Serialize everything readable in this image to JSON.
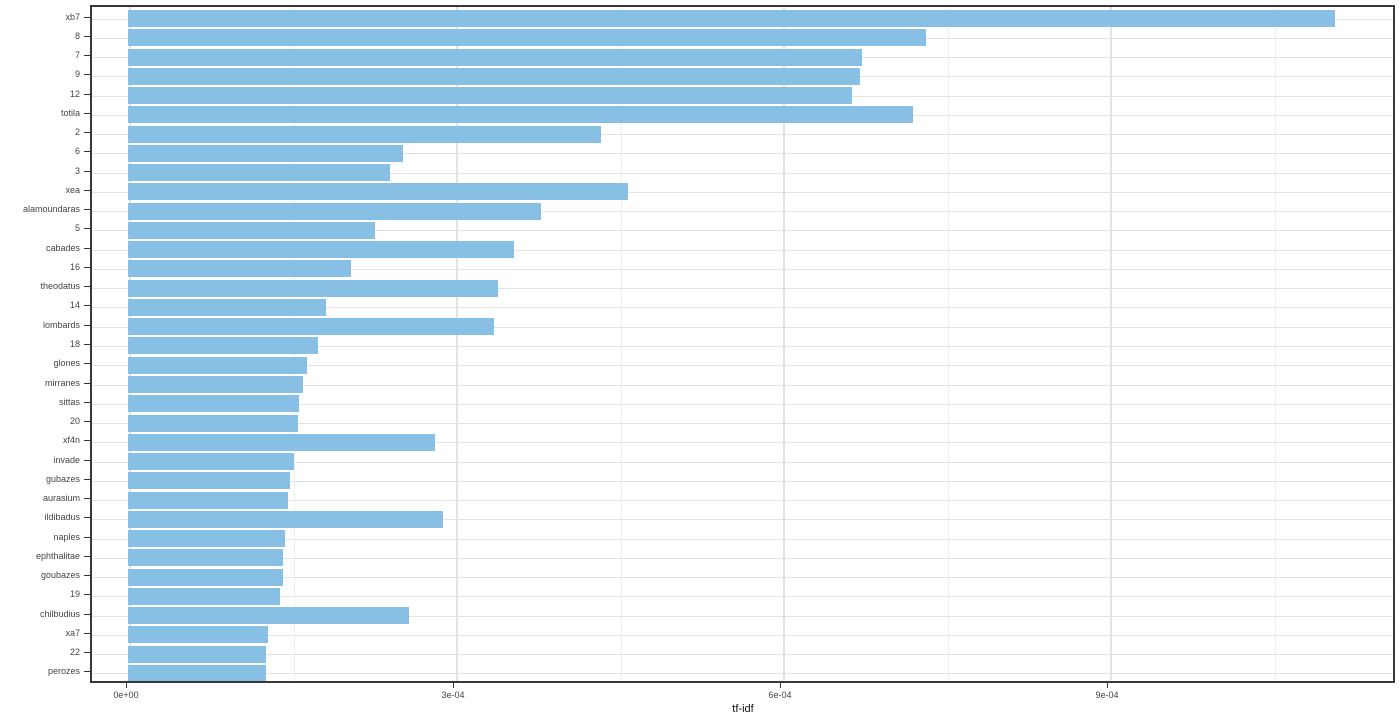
{
  "chart_data": {
    "type": "bar",
    "orientation": "horizontal",
    "title": "",
    "xlabel": "tf-idf",
    "ylabel": "",
    "categories": [
      "xb7",
      "8",
      "7",
      "9",
      "12",
      "totila",
      "2",
      "6",
      "3",
      "xea",
      "alamoundaras",
      "5",
      "cabades",
      "16",
      "theodatus",
      "14",
      "lombards",
      "18",
      "glones",
      "mirranes",
      "sittas",
      "20",
      "xf4n",
      "invade",
      "gubazes",
      "aurasium",
      "ildibadus",
      "naples",
      "ephthalitae",
      "goubazes",
      "19",
      "chilbudius",
      "xa7",
      "22",
      "perozes"
    ],
    "values": [
      0.001107,
      0.000732,
      0.000673,
      0.000672,
      0.000664,
      0.00072,
      0.000434,
      0.000252,
      0.00024,
      0.000459,
      0.000379,
      0.000227,
      0.000354,
      0.000205,
      0.000339,
      0.000182,
      0.000336,
      0.000174,
      0.000164,
      0.000161,
      0.000157,
      0.000156,
      0.000282,
      0.000152,
      0.000149,
      0.000147,
      0.000289,
      0.000144,
      0.000142,
      0.000142,
      0.000139,
      0.000258,
      0.000128,
      0.000127,
      0.000127
    ],
    "x_ticks": {
      "labels": [
        "0e+00",
        "3e-04",
        "6e-04",
        "9e-04"
      ],
      "values": [
        0,
        0.0003,
        0.0006,
        0.0009
      ]
    },
    "x_minor_tick_values": [
      0.00015,
      0.00045,
      0.00075,
      0.00105
    ],
    "xlim_display": [
      -3.49e-05,
      0.0011624
    ],
    "grid": true,
    "legend": false,
    "colors": {
      "bar": "#87BFE5",
      "panel_border": "#383838",
      "grid_major": "#e3e3e3",
      "grid_minor": "#ededed",
      "tick_label": "#444444",
      "axis_title": "#111111",
      "background": "#ffffff"
    }
  }
}
